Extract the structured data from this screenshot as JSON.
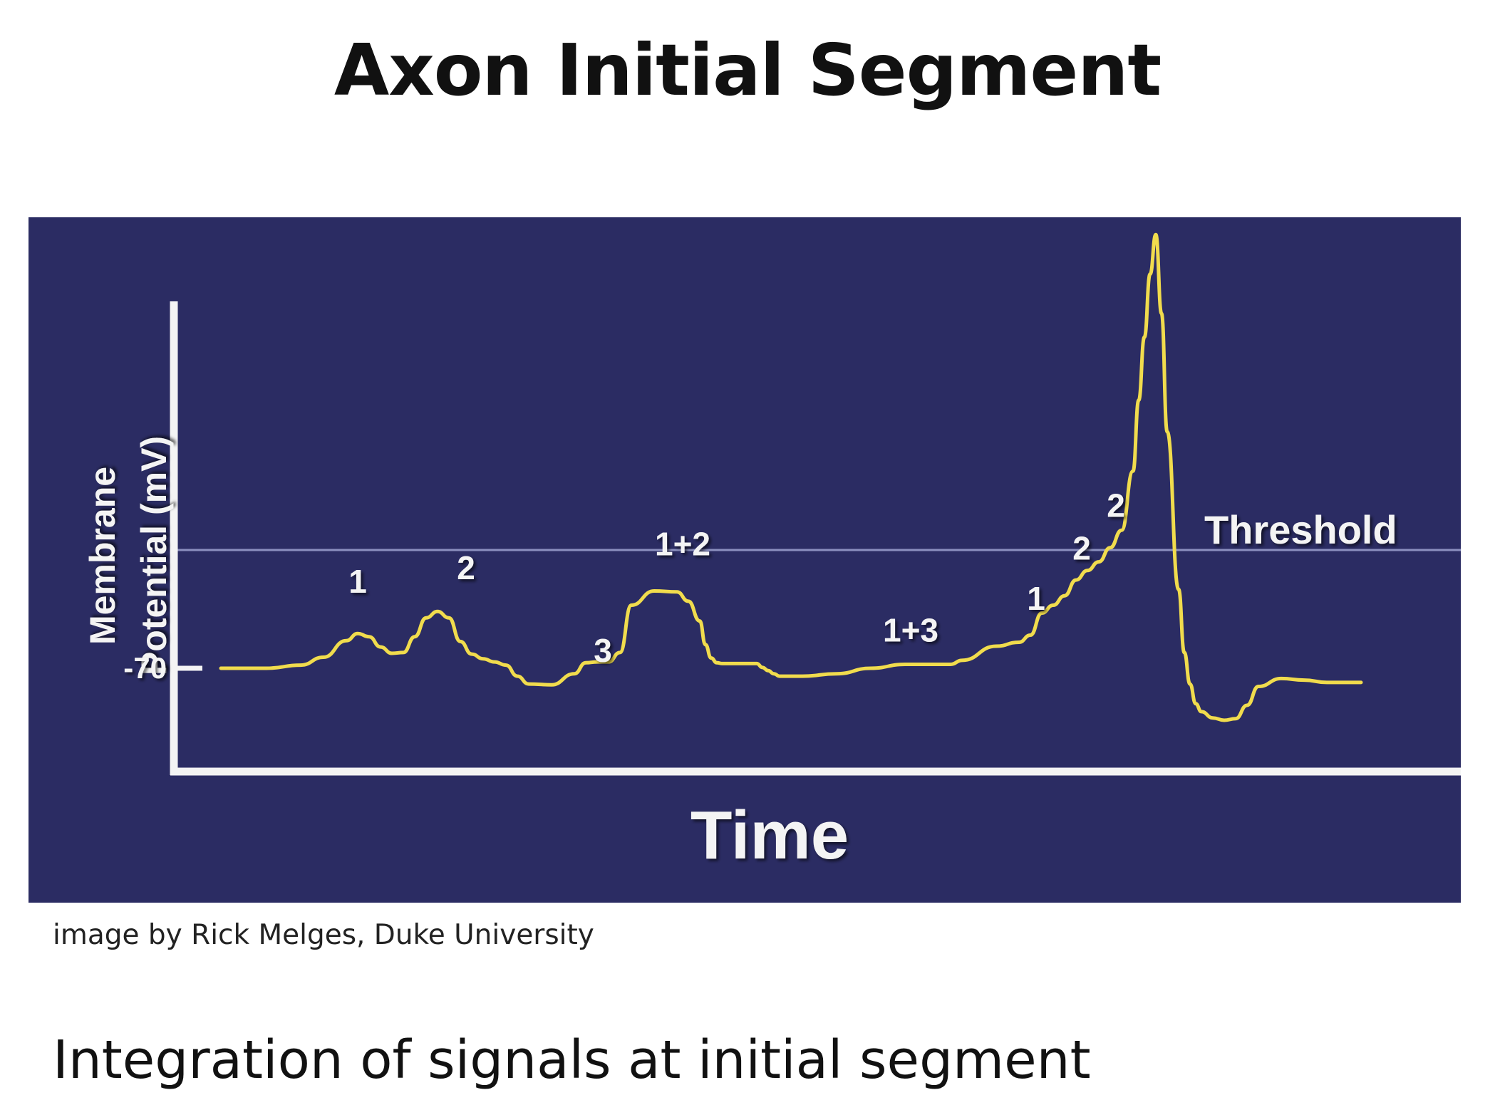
{
  "slide": {
    "title": "Axon Initial Segment",
    "credit": "image by Rick Melges, Duke University",
    "caption": "Integration of signals at initial segment"
  },
  "colors": {
    "panel_background": "#2b2c63",
    "axis": "#f4f4f4",
    "trace": "#f1dc4d",
    "threshold_line": "#8c90bf",
    "label": "#f4f4f4"
  },
  "chart_data": {
    "type": "line",
    "xlabel": "Time",
    "ylabel": "Membrane Potential (mV)",
    "ylabel_lines": [
      "Membrane",
      "Potential (mV)"
    ],
    "y_ticks": [
      {
        "value": -70,
        "label": "-70"
      }
    ],
    "threshold": {
      "value": -55,
      "label": "Threshold"
    },
    "ylim": [
      -82,
      40
    ],
    "xlim": [
      0,
      100
    ],
    "grid": false,
    "legend": "none",
    "series": [
      {
        "x": [
          0,
          4,
          7,
          9,
          11,
          12,
          13,
          14,
          15,
          16,
          17,
          18,
          19,
          20,
          21,
          22,
          23,
          24,
          25,
          26,
          27,
          29,
          31,
          32,
          33,
          34,
          35,
          36,
          38,
          40,
          41,
          42,
          42.5,
          43,
          43.5,
          44,
          46,
          47,
          47.5,
          48,
          48.5,
          49,
          51,
          54,
          57,
          60,
          62,
          64,
          65,
          68,
          70,
          71,
          72,
          73,
          74,
          75,
          76,
          77,
          78,
          79,
          80,
          80.5,
          81,
          81.5,
          82,
          82.5,
          83,
          84,
          84.5,
          85,
          85.5,
          86,
          87,
          88,
          89,
          90,
          91,
          93,
          95,
          97,
          100
        ],
        "y": [
          -70,
          -70,
          -69.6,
          -68.6,
          -66.5,
          -65.6,
          -66,
          -67.3,
          -68.1,
          -68,
          -66,
          -63.6,
          -62.8,
          -63.6,
          -66.6,
          -68.2,
          -68.8,
          -69.2,
          -69.6,
          -71,
          -72,
          -72.1,
          -70.7,
          -69.3,
          -69.2,
          -69.2,
          -68,
          -62,
          -60.2,
          -60.3,
          -61.5,
          -64,
          -67,
          -68.7,
          -69.3,
          -69.4,
          -69.4,
          -69.4,
          -69.9,
          -70.3,
          -70.7,
          -71,
          -71,
          -70.7,
          -70,
          -69.5,
          -69.5,
          -69.5,
          -69,
          -67.2,
          -66.7,
          -65.8,
          -63,
          -62,
          -60.8,
          -58.8,
          -57.6,
          -56.5,
          -54.7,
          -52.5,
          -45,
          -36,
          -28,
          -20,
          -15,
          -25,
          -40,
          -60,
          -68,
          -72,
          -74.5,
          -75.5,
          -76.3,
          -76.6,
          -76.4,
          -74.7,
          -72.3,
          -71.3,
          -71.5,
          -71.8,
          -71.8
        ]
      }
    ],
    "annotations": [
      {
        "text": "1",
        "x": 12,
        "y": -60.4
      },
      {
        "text": "2",
        "x": 21.5,
        "y": -58.7
      },
      {
        "text": "3",
        "x": 33.5,
        "y": -69.2
      },
      {
        "text": "1+2",
        "x": 40.5,
        "y": -55.7
      },
      {
        "text": "1+3",
        "x": 60.5,
        "y": -66.6
      },
      {
        "text": "1",
        "x": 71.5,
        "y": -62.6
      },
      {
        "text": "2",
        "x": 75.5,
        "y": -56.2
      },
      {
        "text": "2",
        "x": 78.5,
        "y": -50.8
      }
    ]
  }
}
